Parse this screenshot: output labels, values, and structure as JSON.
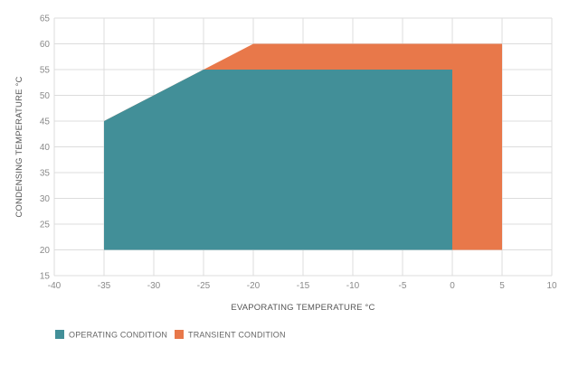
{
  "chart_data": {
    "type": "area",
    "xlabel": "EVAPORATING TEMPERATURE °C",
    "ylabel": "CONDENSING TEMPERATURE °C",
    "xlim": [
      -40,
      10
    ],
    "ylim": [
      15,
      65
    ],
    "x_ticks": [
      -40,
      -35,
      -30,
      -25,
      -20,
      -15,
      -10,
      -5,
      0,
      5,
      10
    ],
    "y_ticks": [
      15,
      20,
      25,
      30,
      35,
      40,
      45,
      50,
      55,
      60,
      65
    ],
    "grid": true,
    "legend_position": "bottom-left",
    "series": [
      {
        "name": "TRANSIENT CONDITION",
        "color": "#e8784a",
        "polygon": [
          [
            -35,
            20
          ],
          [
            -35,
            45
          ],
          [
            -20,
            60
          ],
          [
            5,
            60
          ],
          [
            5,
            20
          ]
        ]
      },
      {
        "name": "OPERATING CONDITION",
        "color": "#428f98",
        "polygon": [
          [
            -35,
            20
          ],
          [
            -35,
            45
          ],
          [
            -25,
            55
          ],
          [
            0,
            55
          ],
          [
            0,
            20
          ]
        ]
      }
    ]
  }
}
